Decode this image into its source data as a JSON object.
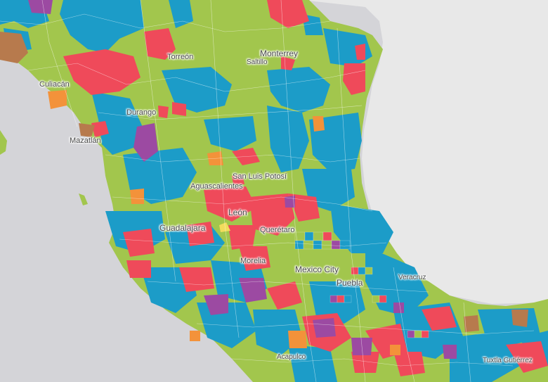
{
  "map": {
    "background": "#d4d4d8",
    "colors": {
      "green": "#a2c64d",
      "blue": "#1c9cc8",
      "red": "#ef4a5a",
      "purple": "#9c4aa2",
      "orange": "#f3923a",
      "brown": "#b77a4d",
      "yellow": "#f2dc5c",
      "water_right": "#e8e8e8"
    },
    "cities": [
      {
        "id": "torreon",
        "label": "Torreón"
      },
      {
        "id": "monterrey",
        "label": "Monterrey"
      },
      {
        "id": "saltillo",
        "label": "Saltillo"
      },
      {
        "id": "culiacan",
        "label": "Culiacán"
      },
      {
        "id": "durango",
        "label": "Durango"
      },
      {
        "id": "mazatlan",
        "label": "Mazatlán"
      },
      {
        "id": "san-luis-potosi",
        "label": "San Luis Potosí"
      },
      {
        "id": "aguascalientes",
        "label": "Aguascalientes"
      },
      {
        "id": "leon",
        "label": "León"
      },
      {
        "id": "guadalajara",
        "label": "Guadalajara"
      },
      {
        "id": "queretaro",
        "label": "Querétaro"
      },
      {
        "id": "morelia",
        "label": "Morelia"
      },
      {
        "id": "mexico-city",
        "label": "Mexico City"
      },
      {
        "id": "puebla",
        "label": "Puebla"
      },
      {
        "id": "veracruz",
        "label": "Veracruz"
      },
      {
        "id": "acapulco",
        "label": "Acapulco"
      },
      {
        "id": "tuxtla-gutierrez",
        "label": "Tuxtla Gutiérrez"
      }
    ]
  }
}
